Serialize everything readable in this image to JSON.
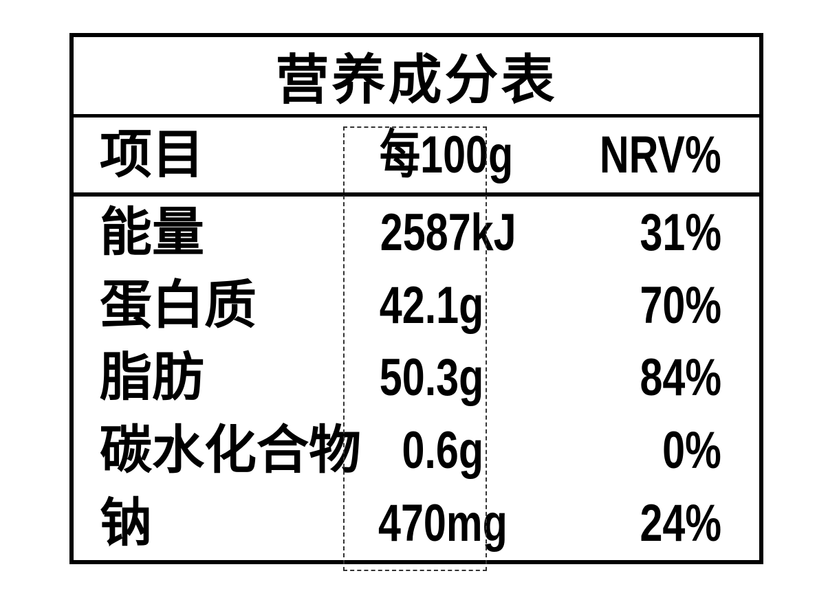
{
  "table": {
    "title": "营养成分表",
    "columns": {
      "item": "项目",
      "amount": "每100g",
      "nrv": "NRV%"
    },
    "rows": [
      {
        "label": "能量",
        "amount": "2587kJ",
        "nrv": "31%"
      },
      {
        "label": "蛋白质",
        "amount": "42.1g",
        "nrv": "70%"
      },
      {
        "label": "脂肪",
        "amount": "50.3g",
        "nrv": "84%"
      },
      {
        "label": "碳水化合物",
        "amount": "0.6g",
        "nrv": "0%"
      },
      {
        "label": "钠",
        "amount": "470mg",
        "nrv": "24%"
      }
    ],
    "colors": {
      "text": "#000000",
      "border": "#000000",
      "background": "#ffffff",
      "selection_dash": "#333333"
    },
    "highlight": {
      "type": "dashed-selection-box",
      "target_column": "每100g"
    }
  }
}
